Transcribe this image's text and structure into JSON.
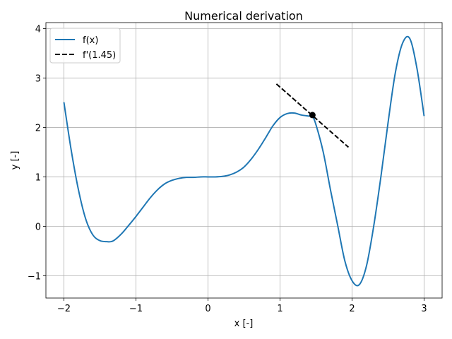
{
  "chart_data": {
    "type": "line",
    "title": "Numerical derivation",
    "xlabel": "x [-]",
    "ylabel": "y [-]",
    "xlim": [
      -2.25,
      3.25
    ],
    "ylim": [
      -1.45,
      4.12
    ],
    "grid": true,
    "legend_position": "upper-left",
    "x_ticks": [
      {
        "value": -2,
        "label": "−2"
      },
      {
        "value": -1,
        "label": "−1"
      },
      {
        "value": 0,
        "label": "0"
      },
      {
        "value": 1,
        "label": "1"
      },
      {
        "value": 2,
        "label": "2"
      },
      {
        "value": 3,
        "label": "3"
      }
    ],
    "y_ticks": [
      {
        "value": -1,
        "label": "−1"
      },
      {
        "value": 0,
        "label": "0"
      },
      {
        "value": 1,
        "label": "1"
      },
      {
        "value": 2,
        "label": "2"
      },
      {
        "value": 3,
        "label": "3"
      },
      {
        "value": 4,
        "label": "4"
      }
    ],
    "series": [
      {
        "name": "f(x)",
        "style": "solid",
        "color": "#1f77b4",
        "x": [
          -2.0,
          -1.9,
          -1.8,
          -1.7,
          -1.6,
          -1.5,
          -1.4,
          -1.35,
          -1.3,
          -1.2,
          -1.1,
          -1.0,
          -0.9,
          -0.8,
          -0.7,
          -0.6,
          -0.5,
          -0.4,
          -0.3,
          -0.2,
          -0.1,
          0.0,
          0.1,
          0.2,
          0.3,
          0.4,
          0.5,
          0.6,
          0.7,
          0.8,
          0.9,
          1.0,
          1.1,
          1.2,
          1.3,
          1.4,
          1.45,
          1.5,
          1.6,
          1.7,
          1.8,
          1.9,
          2.0,
          2.1,
          2.2,
          2.3,
          2.4,
          2.5,
          2.6,
          2.7,
          2.8,
          2.9,
          3.0
        ],
        "y": [
          2.51,
          1.55,
          0.75,
          0.16,
          -0.17,
          -0.29,
          -0.31,
          -0.31,
          -0.28,
          -0.15,
          0.02,
          0.2,
          0.39,
          0.58,
          0.74,
          0.86,
          0.93,
          0.97,
          0.99,
          0.99,
          1.0,
          1.0,
          1.0,
          1.01,
          1.04,
          1.1,
          1.2,
          1.36,
          1.56,
          1.79,
          2.03,
          2.2,
          2.28,
          2.29,
          2.25,
          2.23,
          2.22,
          2.05,
          1.5,
          0.74,
          0.02,
          -0.7,
          -1.1,
          -1.18,
          -0.8,
          0.0,
          1.0,
          2.1,
          3.1,
          3.7,
          3.8,
          3.2,
          2.23
        ]
      },
      {
        "name": "f'(1.45)",
        "style": "dashed",
        "color": "#000000",
        "x": [
          0.95,
          1.95
        ],
        "y": [
          2.88,
          1.6
        ]
      }
    ],
    "marker": {
      "x": 1.45,
      "y": 2.25,
      "color": "#000000"
    }
  }
}
